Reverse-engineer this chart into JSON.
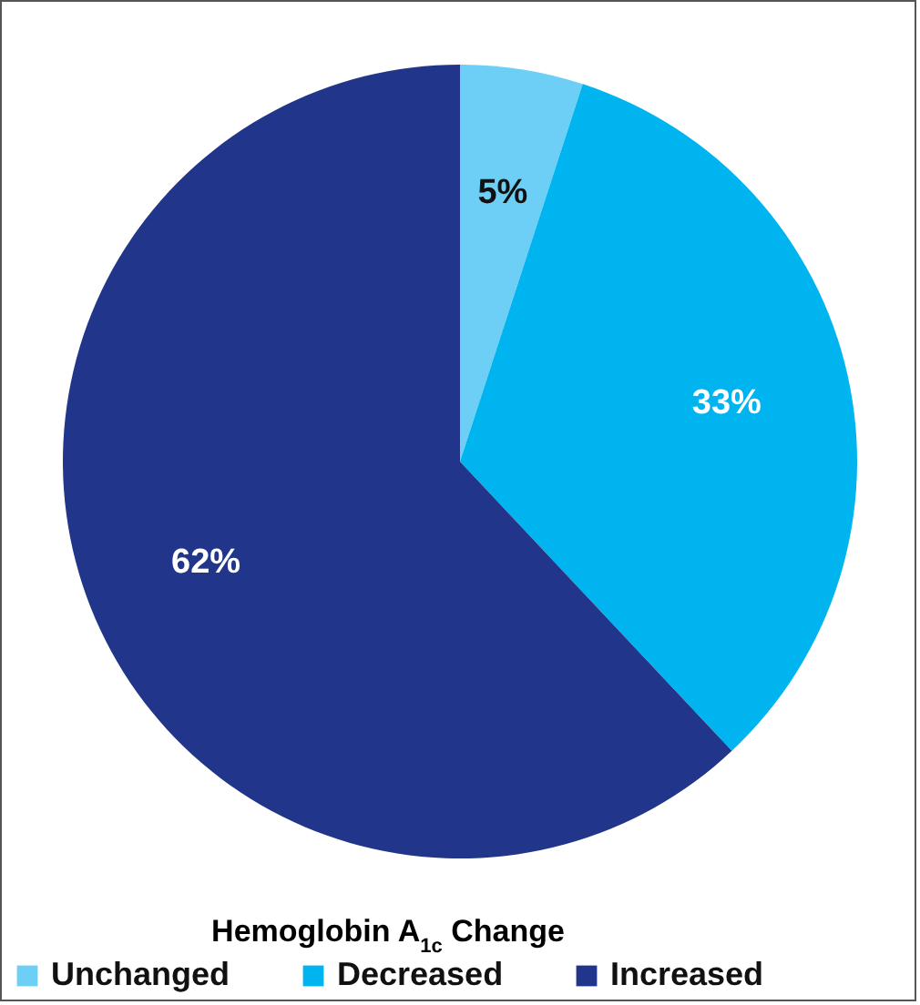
{
  "chart_data": {
    "type": "pie",
    "legend_title": "Hemoglobin A$_{1c}$ Change",
    "categories": [
      "Unchanged",
      "Decreased",
      "Increased"
    ],
    "values": [
      5,
      33,
      62
    ],
    "colors": [
      "#6dcff6",
      "#00b4ef",
      "#21368a"
    ],
    "value_labels": [
      "5%",
      "33%",
      "62%"
    ],
    "legend": "bottom"
  }
}
